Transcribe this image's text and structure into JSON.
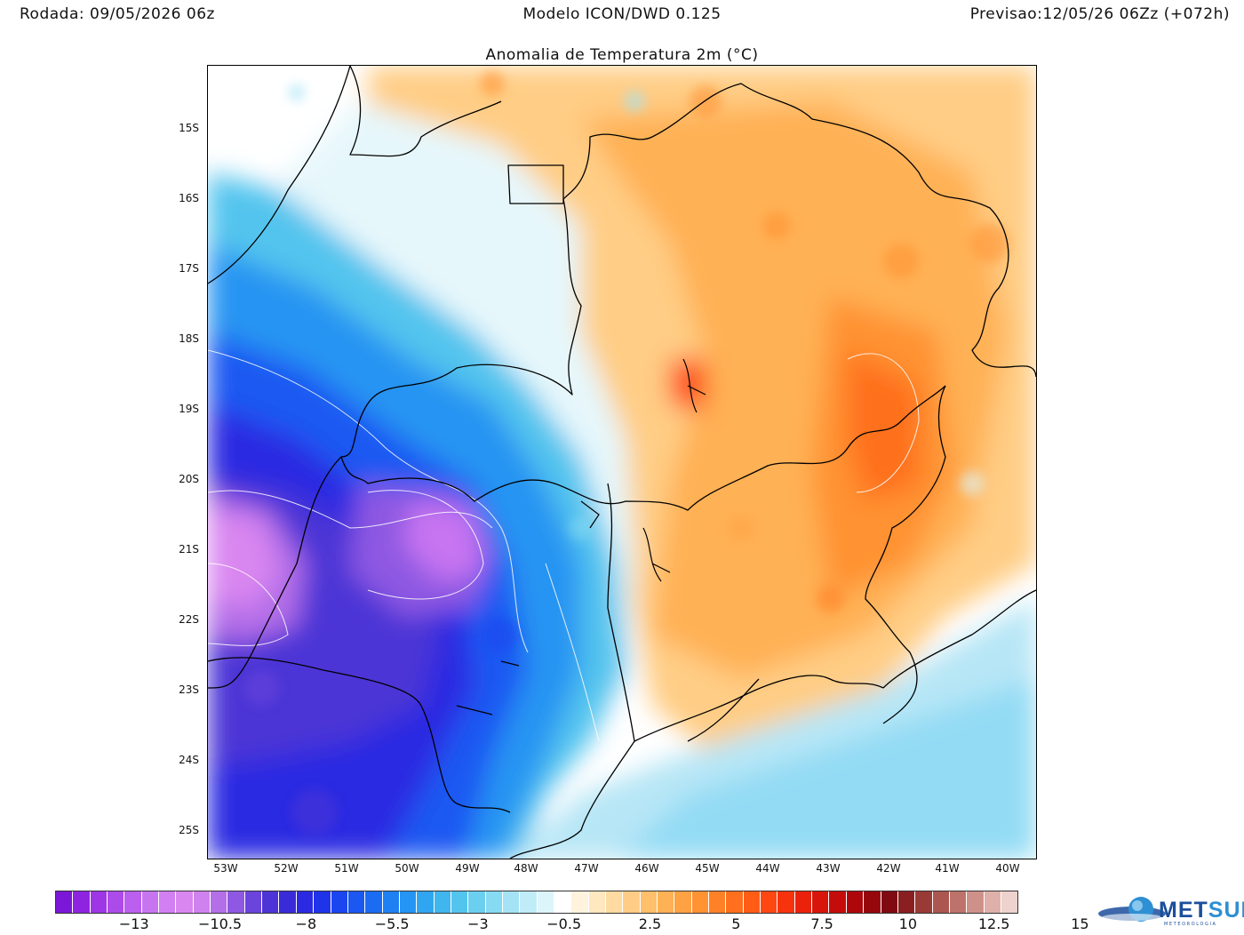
{
  "header": {
    "run": "Rodada: 09/05/2026 06z",
    "model": "Modelo ICON/DWD 0.125",
    "forecast": "Previsao:12/05/26 06Zz (+072h)"
  },
  "map": {
    "title": "Anomalia de Temperatura 2m (°C)",
    "lat_labels": [
      "15S",
      "16S",
      "17S",
      "18S",
      "19S",
      "20S",
      "21S",
      "22S",
      "23S",
      "24S",
      "25S"
    ],
    "lon_labels": [
      "53W",
      "52W",
      "51W",
      "50W",
      "49W",
      "48W",
      "47W",
      "46W",
      "45W",
      "44W",
      "43W",
      "42W",
      "41W",
      "40W"
    ],
    "field": "temperature anomaly shading",
    "ocean_color": "#b7e6f6"
  },
  "legend": {
    "tick_labels": [
      "-13",
      "-10.5",
      "-8",
      "-5.5",
      "-3",
      "-0.5",
      "2.5",
      "5",
      "7.5",
      "10",
      "12.5",
      "15"
    ],
    "colors": [
      "#7b17d6",
      "#8f24e0",
      "#9e36e6",
      "#ad4aea",
      "#bb5fee",
      "#c774f1",
      "#d27ff2",
      "#d986f0",
      "#cf82ee",
      "#b46ee8",
      "#8e58e2",
      "#6a44dc",
      "#4c34d6",
      "#3a2bd9",
      "#2b2ae2",
      "#1f33e8",
      "#1a45ef",
      "#1b58f2",
      "#1c6cf3",
      "#1f80f3",
      "#2594f2",
      "#30a6f0",
      "#3fb6ee",
      "#53c4ee",
      "#6bd0f0",
      "#86daf2",
      "#a3e3f5",
      "#c0ecf8",
      "#dcf5fb",
      "#ffffff",
      "#fff3de",
      "#ffe7c0",
      "#ffdaa1",
      "#ffcd85",
      "#ffbf6b",
      "#ffb155",
      "#ffa243",
      "#ff9233",
      "#ff8127",
      "#ff6f1d",
      "#ff5c16",
      "#ff4711",
      "#f7330e",
      "#ea220c",
      "#d8150b",
      "#c40d0b",
      "#ad070c",
      "#96060d",
      "#7f0a12",
      "#8a1f22",
      "#9a3a36",
      "#ab5650",
      "#bd736b",
      "#ce918a",
      "#dfb0aa",
      "#eed2cd"
    ],
    "label_positions_note": "tick labels under every 5th swatch"
  },
  "logo": {
    "name_part1": "MET",
    "name_part2": "SUL",
    "subtitle": "METEOROLOGIA"
  }
}
